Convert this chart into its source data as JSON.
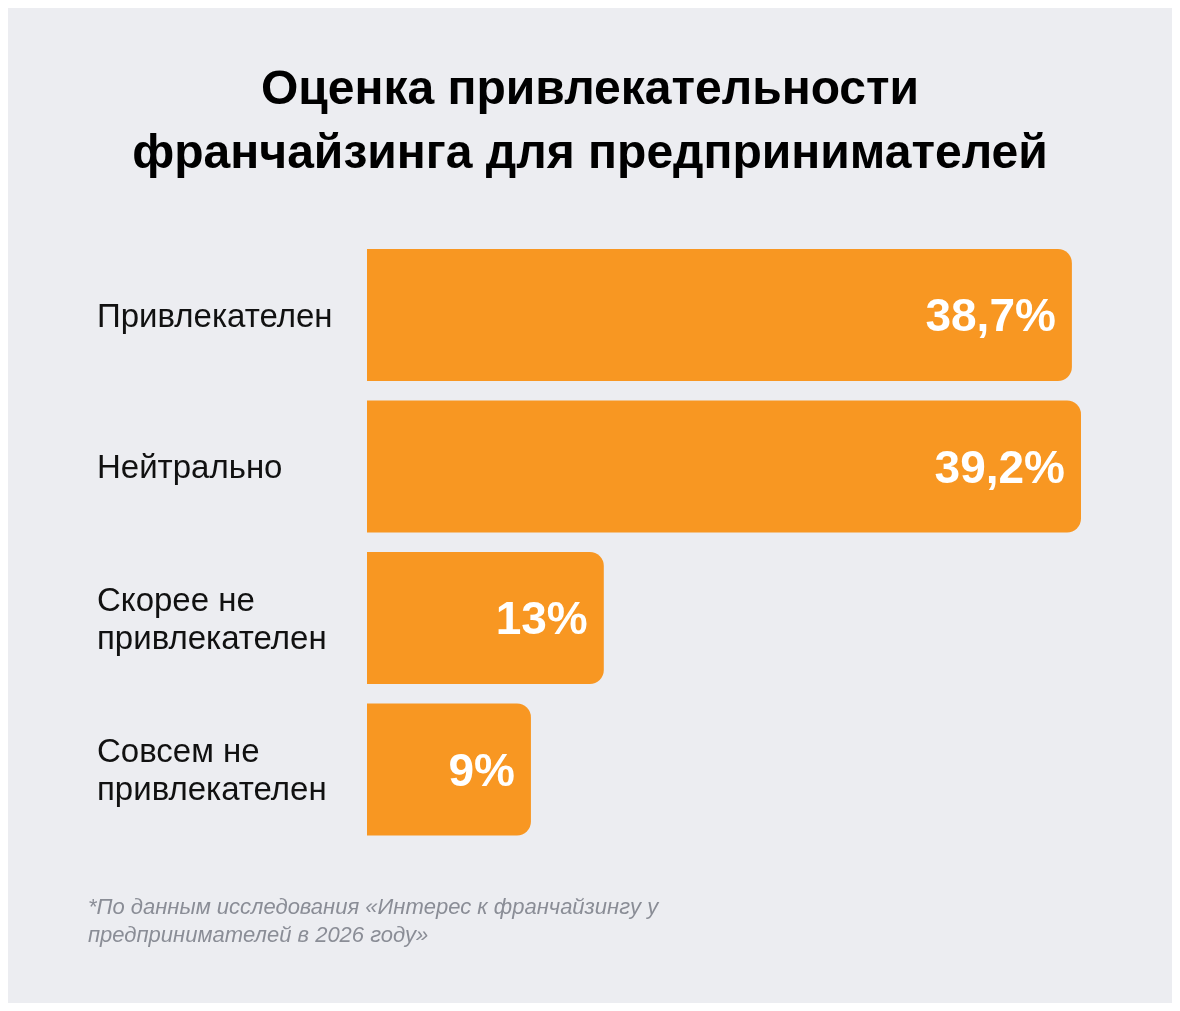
{
  "chart_data": {
    "type": "bar",
    "orientation": "horizontal",
    "title": "Оценка привлекательности франчайзинга для предпринимателей",
    "categories": [
      "Привлекателен",
      "Нейтрально",
      "Скорее не привлекателен",
      "Совсем не привлекателен"
    ],
    "values": [
      38.7,
      39.2,
      13,
      9
    ],
    "value_labels": [
      "38,7%",
      "39,2%",
      "13%",
      "9%"
    ],
    "color": "#f89722",
    "tick_labels": "y",
    "annotations": [
      "*По данным исследования «Интерес к франчайзингу у предпринимателей в 2026 году»"
    ]
  }
}
